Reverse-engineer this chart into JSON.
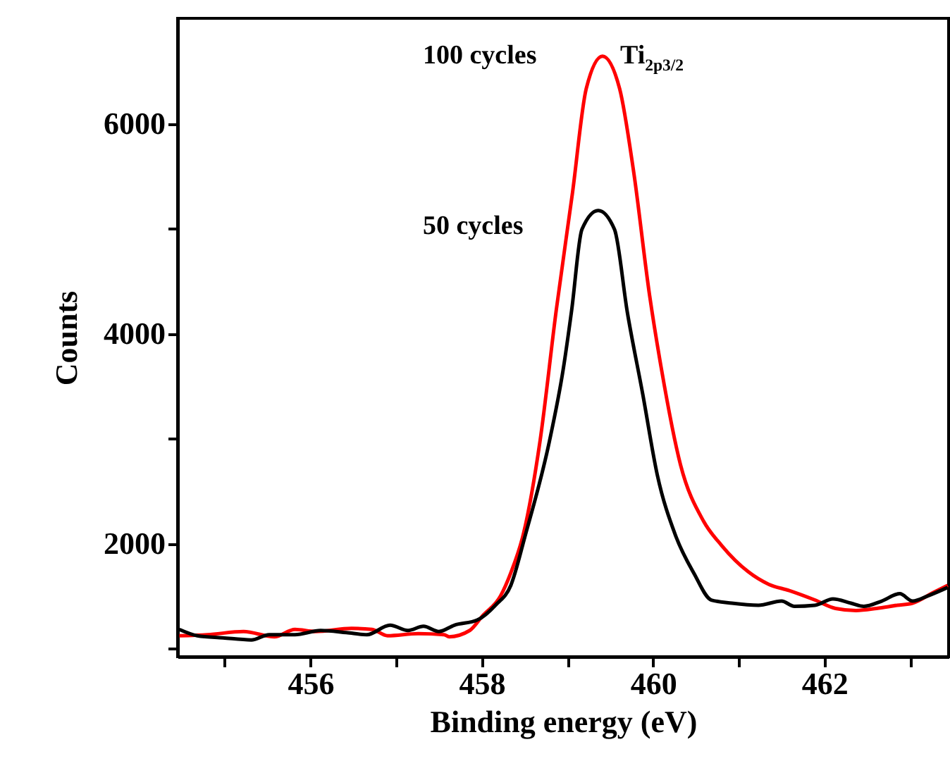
{
  "chart_data": {
    "type": "line",
    "xlabel": "Binding energy (eV)",
    "ylabel": "Counts",
    "xlim": [
      454.45,
      463.45
    ],
    "ylim": [
      920,
      7000
    ],
    "xticks": [
      {
        "value": 455,
        "label": null
      },
      456,
      {
        "value": 457,
        "label": null
      },
      458,
      {
        "value": 459,
        "label": null
      },
      460,
      {
        "value": 461,
        "label": null
      },
      462,
      {
        "value": 463,
        "label": null
      }
    ],
    "yticks": [
      {
        "value": 1000,
        "label": null
      },
      2000,
      {
        "value": 3000,
        "label": null
      },
      4000,
      {
        "value": 5000,
        "label": null
      },
      6000
    ],
    "grid": false,
    "line_style": "solid",
    "marker": "none",
    "series": [
      {
        "color": "#ff0000",
        "x": [
          454.47,
          454.8,
          455.22,
          455.58,
          455.82,
          456.06,
          456.48,
          456.72,
          456.9,
          457.26,
          457.56,
          457.62,
          457.86,
          458.01,
          458.22,
          458.34,
          458.49,
          458.68,
          458.87,
          459.06,
          459.22,
          459.41,
          459.61,
          459.77,
          459.96,
          460.1,
          460.32,
          460.59,
          460.8,
          461.11,
          461.35,
          461.59,
          461.89,
          462.13,
          462.37,
          462.61,
          462.85,
          463.03,
          463.27,
          463.44
        ],
        "values": [
          1120,
          1130,
          1160,
          1110,
          1180,
          1160,
          1190,
          1180,
          1120,
          1140,
          1130,
          1110,
          1170,
          1310,
          1500,
          1720,
          2100,
          2970,
          4220,
          5340,
          6330,
          6640,
          6330,
          5560,
          4360,
          3650,
          2750,
          2210,
          1980,
          1730,
          1610,
          1550,
          1460,
          1380,
          1360,
          1380,
          1410,
          1430,
          1530,
          1600
        ]
      },
      {
        "color": "#000000",
        "x": [
          454.47,
          454.68,
          454.98,
          455.31,
          455.52,
          455.82,
          456.12,
          456.42,
          456.66,
          456.93,
          457.14,
          457.32,
          457.5,
          457.68,
          457.95,
          458.16,
          458.34,
          458.51,
          458.79,
          458.95,
          459.05,
          459.17,
          459.36,
          459.55,
          459.7,
          459.88,
          460.05,
          460.26,
          460.48,
          460.68,
          460.92,
          461.23,
          461.5,
          461.65,
          461.89,
          462.1,
          462.31,
          462.46,
          462.67,
          462.88,
          463.03,
          463.21,
          463.44
        ],
        "values": [
          1180,
          1120,
          1100,
          1080,
          1130,
          1130,
          1170,
          1150,
          1130,
          1220,
          1170,
          1210,
          1160,
          1220,
          1270,
          1410,
          1600,
          2080,
          2970,
          3650,
          4220,
          4990,
          5170,
          4990,
          4200,
          3420,
          2650,
          2080,
          1710,
          1460,
          1430,
          1410,
          1450,
          1400,
          1410,
          1470,
          1430,
          1400,
          1450,
          1520,
          1450,
          1500,
          1580
        ]
      }
    ],
    "annotations": [
      "100 cycles",
      "50 cycles",
      "Ti$_{2p}$$_{3/2}$"
    ]
  }
}
